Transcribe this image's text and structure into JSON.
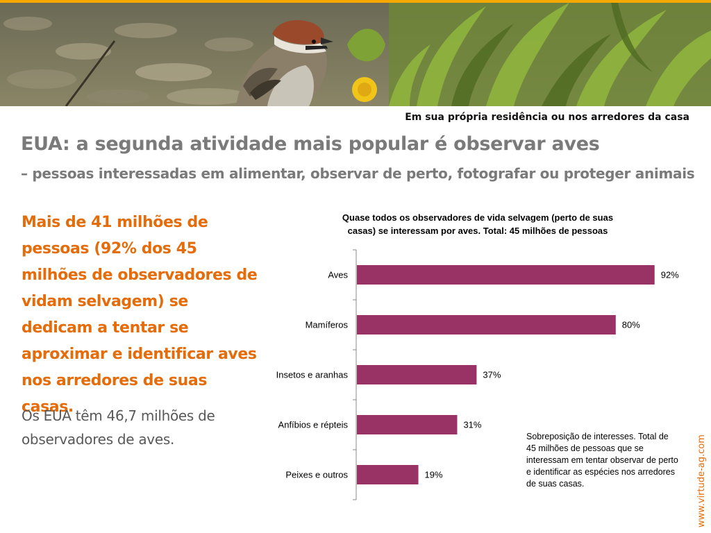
{
  "banner": {
    "caption": "Em sua própria residência ou nos arredores da casa"
  },
  "header": {
    "title": "EUA: a segunda atividade mais popular é observar aves",
    "subtitle": "– pessoas interessadas em alimentar, observar de perto, fotografar ou proteger animais"
  },
  "body": {
    "lead": "Mais de 41 milhões de pessoas (92% dos 45 milhões de observadores de vidam selvagem) se dedicam a tentar se aproximar e identificar aves nos arredores de suas casas.",
    "secondary": "Os EUA têm 46,7 milhões de observadores de aves."
  },
  "chart_data": {
    "type": "bar",
    "orientation": "horizontal",
    "title": "Quase todos os observadores de vida selvagem (perto de suas casas) se interessam por aves. Total: 45 milhões de pessoas",
    "title_lines": [
      "Quase todos os observadores de vida selvagem (perto de suas",
      "casas) se interessam por aves. Total: 45 milhões de pessoas"
    ],
    "categories": [
      "Aves",
      "Mamíferos",
      "Insetos e aranhas",
      "Anfíbios e répteis",
      "Peixes e outros"
    ],
    "values": [
      92,
      80,
      37,
      31,
      19
    ],
    "data_labels": [
      "92%",
      "80%",
      "37%",
      "31%",
      "19%"
    ],
    "xlim": [
      0,
      100
    ],
    "grid": false,
    "bar_color": "#993366"
  },
  "note": "Sobreposição de interesses. Total de 45 milhões de pessoas que se interessam em tentar observar de perto e identificar as espécies nos arredores de suas casas.",
  "footer": {
    "website": "www.virtude-ag.com"
  },
  "colors": {
    "accent": "#e46c0a",
    "top_strip": "#f5a800",
    "heading_gray": "#7a7a7a"
  }
}
